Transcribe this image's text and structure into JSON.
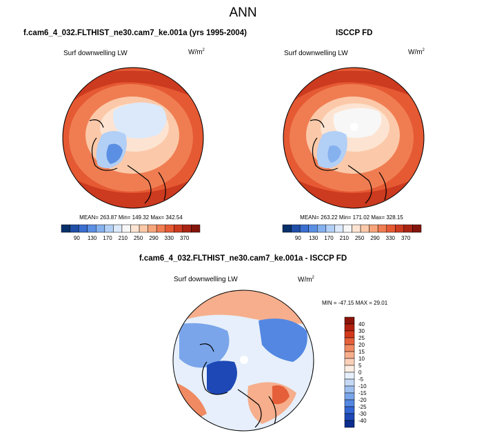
{
  "title": "ANN",
  "chart_data": [
    {
      "type": "heatmap",
      "projection": "north polar stereographic",
      "panel_title": "f.cam6_4_032.FLTHIST_ne30.cam7_ke.001a (yrs 1995-2004)",
      "variable": "Surf downwelling LW",
      "units_base": "W/m",
      "units_exp": "2",
      "stats": "MEAN= 263.87  Min= 149.32  Max= 342.54",
      "mean": 263.87,
      "min": 149.32,
      "max": 342.54,
      "levels": [
        90,
        130,
        170,
        210,
        250,
        290,
        330,
        370
      ],
      "colorbar_labels": [
        "90",
        "130",
        "170",
        "210",
        "250",
        "290",
        "330",
        "370"
      ],
      "colors": [
        "#08306b",
        "#1f4fa8",
        "#3a6ed0",
        "#5a8fe3",
        "#86b1ef",
        "#b2cff6",
        "#dbe9fb",
        "#f7f7f7",
        "#fde4d2",
        "#fbc9a9",
        "#f7a47b",
        "#f07d52",
        "#e55933",
        "#cc3a1f",
        "#aa2414",
        "#84150c"
      ]
    },
    {
      "type": "heatmap",
      "projection": "north polar stereographic",
      "panel_title": "ISCCP FD",
      "variable": "Surf downwelling LW",
      "units_base": "W/m",
      "units_exp": "2",
      "stats": "MEAN= 263.22  Min= 171.02  Max= 328.15",
      "mean": 263.22,
      "min": 171.02,
      "max": 328.15,
      "levels": [
        90,
        130,
        170,
        210,
        250,
        290,
        330,
        370
      ],
      "colorbar_labels": [
        "90",
        "130",
        "170",
        "210",
        "250",
        "290",
        "330",
        "370"
      ],
      "colors": [
        "#08306b",
        "#1f4fa8",
        "#3a6ed0",
        "#5a8fe3",
        "#86b1ef",
        "#b2cff6",
        "#dbe9fb",
        "#f7f7f7",
        "#fde4d2",
        "#fbc9a9",
        "#f7a47b",
        "#f07d52",
        "#e55933",
        "#cc3a1f",
        "#aa2414",
        "#84150c"
      ]
    },
    {
      "type": "heatmap",
      "projection": "north polar stereographic",
      "panel_title": "f.cam6_4_032.FLTHIST_ne30.cam7_ke.001a - ISCCP FD",
      "variable": "Surf downwelling LW",
      "units_base": "W/m",
      "units_exp": "2",
      "stats": "MIN = -47.15 MAX =  29.01",
      "min": -47.15,
      "max": 29.01,
      "levels": [
        40,
        30,
        25,
        20,
        15,
        10,
        5,
        0,
        -5,
        -10,
        -15,
        -20,
        -25,
        -30,
        -40
      ],
      "colorbar_labels": [
        "40",
        "30",
        "25",
        "20",
        "15",
        "10",
        "5",
        "0",
        "-5",
        "-10",
        "-15",
        "-20",
        "-25",
        "-30",
        "-40"
      ],
      "colors": [
        "#8b1409",
        "#b2210f",
        "#d2391b",
        "#e5603a",
        "#f08a62",
        "#f6ae8c",
        "#fbd0b8",
        "#fdeee3",
        "#e6effb",
        "#c5d9f5",
        "#9fc0ef",
        "#7aa5ea",
        "#5387e2",
        "#3366d3",
        "#1d48b6",
        "#0c2d8f"
      ]
    }
  ]
}
